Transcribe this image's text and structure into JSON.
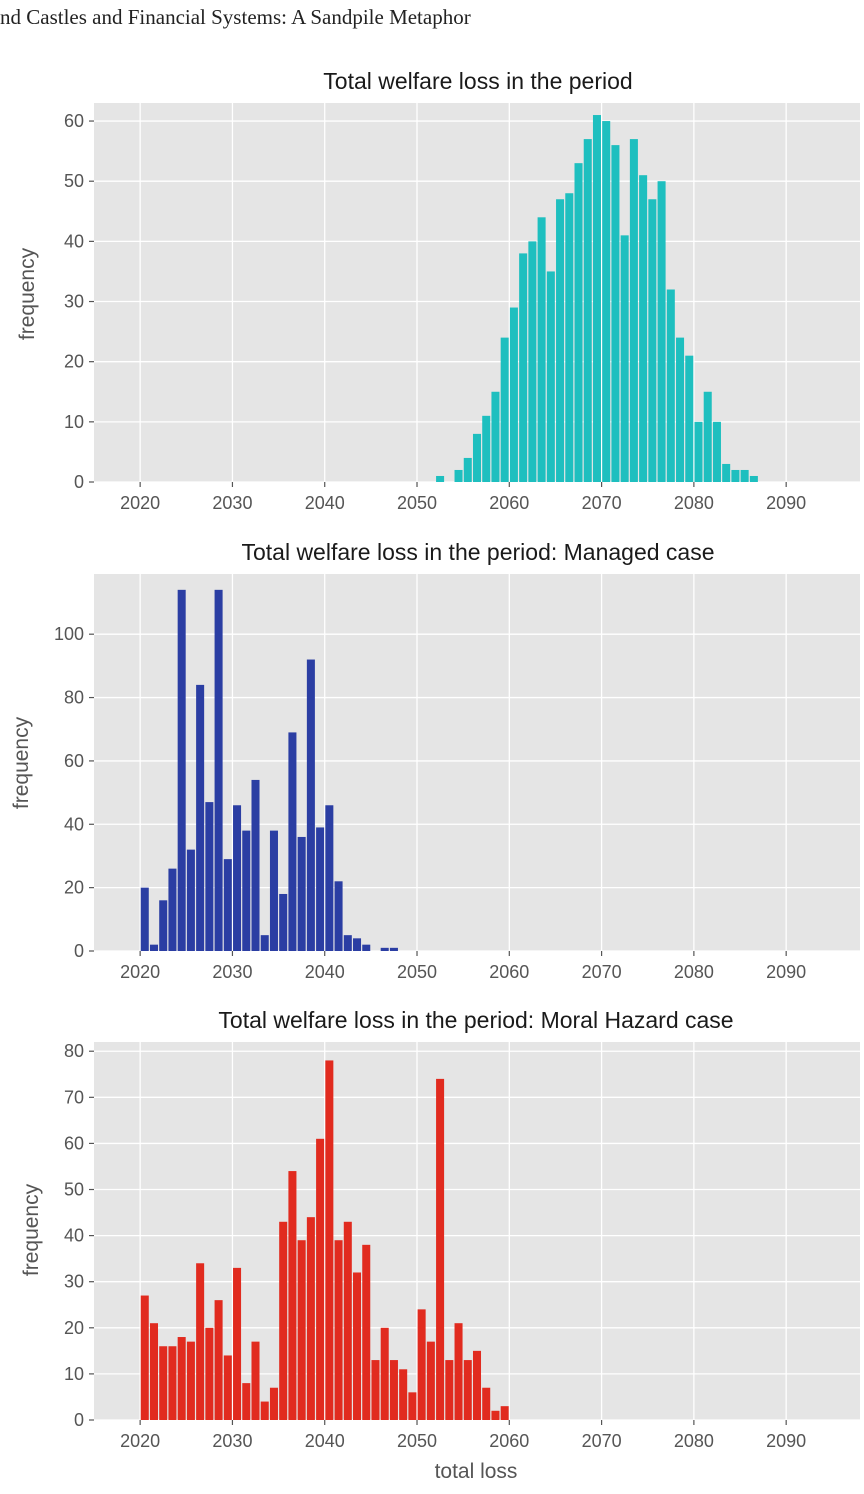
{
  "page": {
    "header": "nd Castles and Financial Systems: A Sandpile Metaphor"
  },
  "chart_data": [
    {
      "type": "bar",
      "title": "Total welfare loss in the period",
      "xlabel": "",
      "ylabel": "frequency",
      "color": "#1ebfbf",
      "xlim": [
        2015,
        2098
      ],
      "ylim": [
        0,
        63
      ],
      "xticks": [
        2020,
        2030,
        2040,
        2050,
        2060,
        2070,
        2080,
        2090
      ],
      "yticks": [
        0,
        10,
        20,
        30,
        40,
        50,
        60
      ],
      "grid": true,
      "bin_width": 1,
      "x": [
        2052,
        2053,
        2054,
        2055,
        2056,
        2057,
        2058,
        2059,
        2060,
        2061,
        2062,
        2063,
        2064,
        2065,
        2066,
        2067,
        2068,
        2069,
        2070,
        2071,
        2072,
        2073,
        2074,
        2075,
        2076,
        2077,
        2078,
        2079,
        2080,
        2081,
        2082,
        2083,
        2084,
        2085,
        2086
      ],
      "values": [
        1,
        0,
        2,
        4,
        8,
        11,
        15,
        24,
        29,
        38,
        40,
        44,
        35,
        47,
        48,
        53,
        57,
        61,
        60,
        56,
        41,
        57,
        51,
        47,
        50,
        32,
        24,
        21,
        10,
        15,
        10,
        3,
        2,
        2,
        1
      ]
    },
    {
      "type": "bar",
      "title": "Total welfare loss in the period: Managed case",
      "xlabel": "",
      "ylabel": "frequency",
      "color": "#2b3ea3",
      "xlim": [
        2015,
        2098
      ],
      "ylim": [
        0,
        119
      ],
      "xticks": [
        2020,
        2030,
        2040,
        2050,
        2060,
        2070,
        2080,
        2090
      ],
      "yticks": [
        0,
        20,
        40,
        60,
        80,
        100
      ],
      "grid": true,
      "bin_width": 1,
      "x": [
        2020,
        2021,
        2022,
        2023,
        2024,
        2025,
        2026,
        2027,
        2028,
        2029,
        2030,
        2031,
        2032,
        2033,
        2034,
        2035,
        2036,
        2037,
        2038,
        2039,
        2040,
        2041,
        2042,
        2043,
        2044,
        2045,
        2046,
        2047
      ],
      "values": [
        20,
        2,
        16,
        26,
        114,
        32,
        84,
        47,
        114,
        29,
        46,
        38,
        54,
        5,
        38,
        18,
        69,
        36,
        92,
        39,
        46,
        22,
        5,
        4,
        2,
        0,
        1,
        1
      ]
    },
    {
      "type": "bar",
      "title": "Total welfare loss in the period: Moral Hazard case",
      "xlabel": "total loss",
      "ylabel": "frequency",
      "color": "#e12b1f",
      "xlim": [
        2015,
        2098
      ],
      "ylim": [
        0,
        82
      ],
      "xticks": [
        2020,
        2030,
        2040,
        2050,
        2060,
        2070,
        2080,
        2090
      ],
      "yticks": [
        0,
        10,
        20,
        30,
        40,
        50,
        60,
        70,
        80
      ],
      "grid": true,
      "bin_width": 1,
      "x": [
        2020,
        2021,
        2022,
        2023,
        2024,
        2025,
        2026,
        2027,
        2028,
        2029,
        2030,
        2031,
        2032,
        2033,
        2034,
        2035,
        2036,
        2037,
        2038,
        2039,
        2040,
        2041,
        2042,
        2043,
        2044,
        2045,
        2046,
        2047,
        2048,
        2049,
        2050,
        2051,
        2052,
        2053,
        2054,
        2055,
        2056,
        2057,
        2058,
        2059
      ],
      "values": [
        27,
        21,
        16,
        16,
        18,
        17,
        34,
        20,
        26,
        14,
        33,
        8,
        17,
        4,
        7,
        43,
        54,
        39,
        44,
        61,
        78,
        39,
        43,
        32,
        38,
        13,
        20,
        13,
        11,
        6,
        24,
        17,
        74,
        13,
        21,
        13,
        15,
        7,
        2,
        3
      ]
    }
  ]
}
